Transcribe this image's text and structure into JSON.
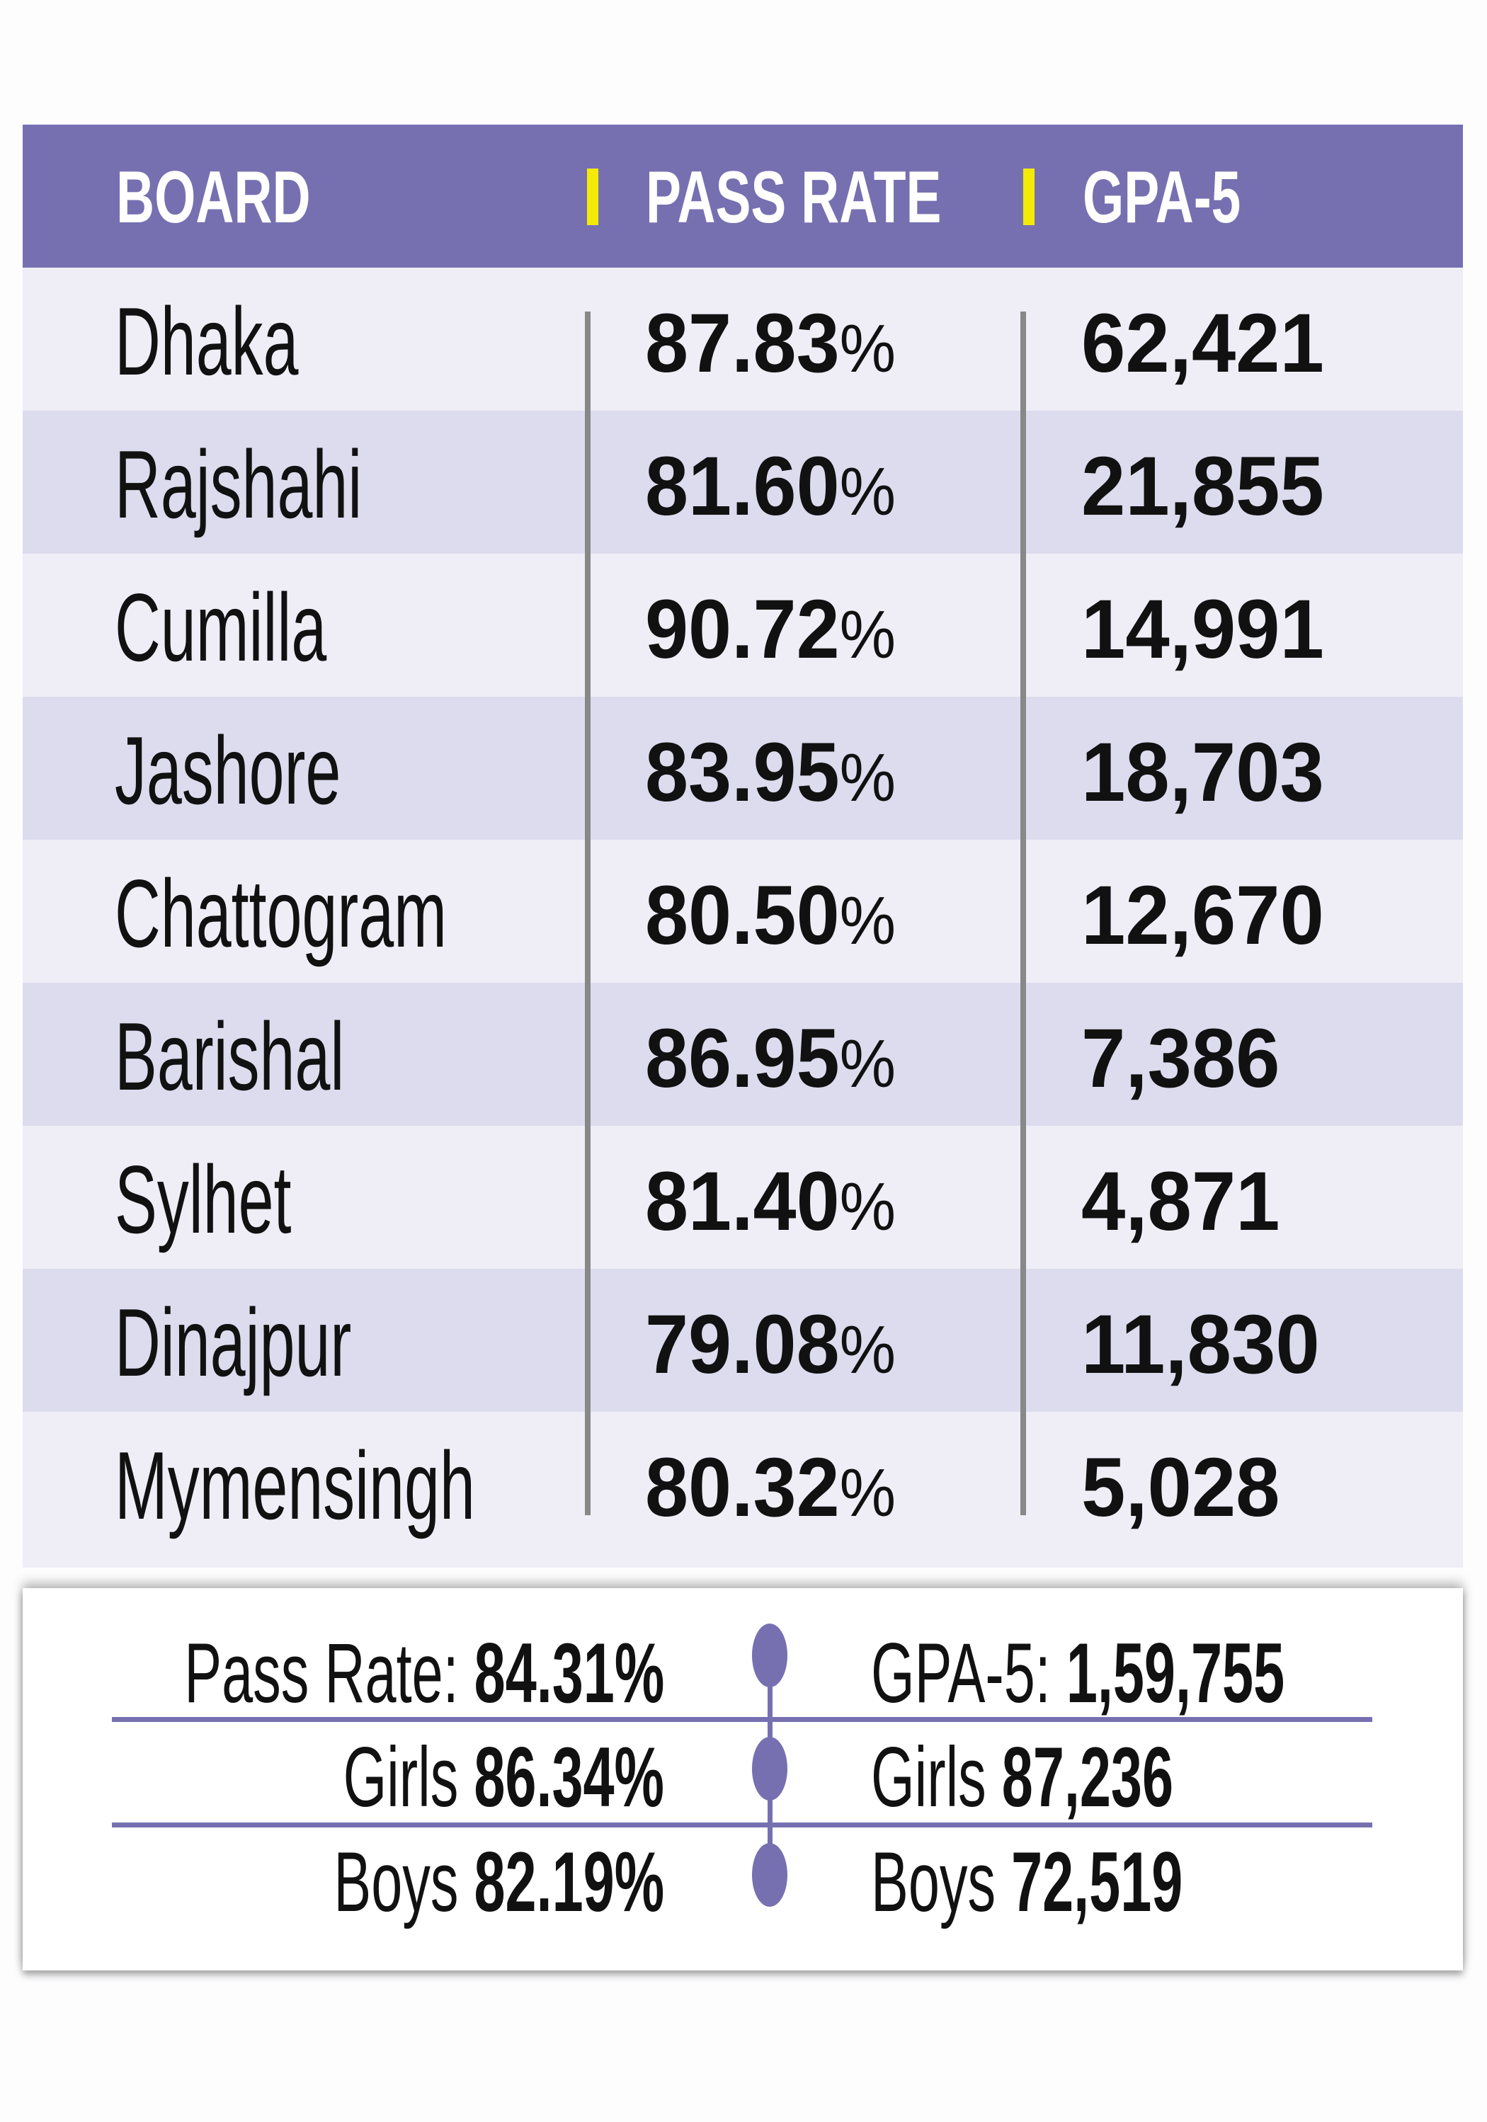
{
  "header": {
    "board": "BOARD",
    "pass_rate": "PASS RATE",
    "gpa5": "GPA-5"
  },
  "colors": {
    "header_bg": "#7670b1",
    "accent_bar": "#f3ea05",
    "row_light": "#efeef7",
    "row_dark": "#dddcee"
  },
  "rows": [
    {
      "board": "Dhaka",
      "pass_rate": "87.83",
      "pct": "%",
      "gpa5": "62,421"
    },
    {
      "board": "Rajshahi",
      "pass_rate": "81.60",
      "pct": "%",
      "gpa5": "21,855"
    },
    {
      "board": "Cumilla",
      "pass_rate": "90.72",
      "pct": "%",
      "gpa5": "14,991"
    },
    {
      "board": "Jashore",
      "pass_rate": "83.95",
      "pct": "%",
      "gpa5": "18,703"
    },
    {
      "board": "Chattogram",
      "pass_rate": "80.50",
      "pct": "%",
      "gpa5": "12,670"
    },
    {
      "board": "Barishal",
      "pass_rate": "86.95",
      "pct": "%",
      "gpa5": "7,386"
    },
    {
      "board": "Sylhet",
      "pass_rate": "81.40",
      "pct": "%",
      "gpa5": "4,871"
    },
    {
      "board": "Dinajpur",
      "pass_rate": "79.08",
      "pct": "%",
      "gpa5": "11,830"
    },
    {
      "board": "Mymensingh",
      "pass_rate": "80.32",
      "pct": "%",
      "gpa5": "5,028"
    }
  ],
  "summary": {
    "left": [
      {
        "label": "Pass Rate:",
        "value": "84.31%"
      },
      {
        "label": "Girls",
        "value": "86.34%"
      },
      {
        "label": "Boys",
        "value": "82.19%"
      }
    ],
    "right": [
      {
        "label": "GPA-5:",
        "value": "1,59,755"
      },
      {
        "label": "Girls",
        "value": "87,236"
      },
      {
        "label": "Boys",
        "value": "72,519"
      }
    ]
  }
}
